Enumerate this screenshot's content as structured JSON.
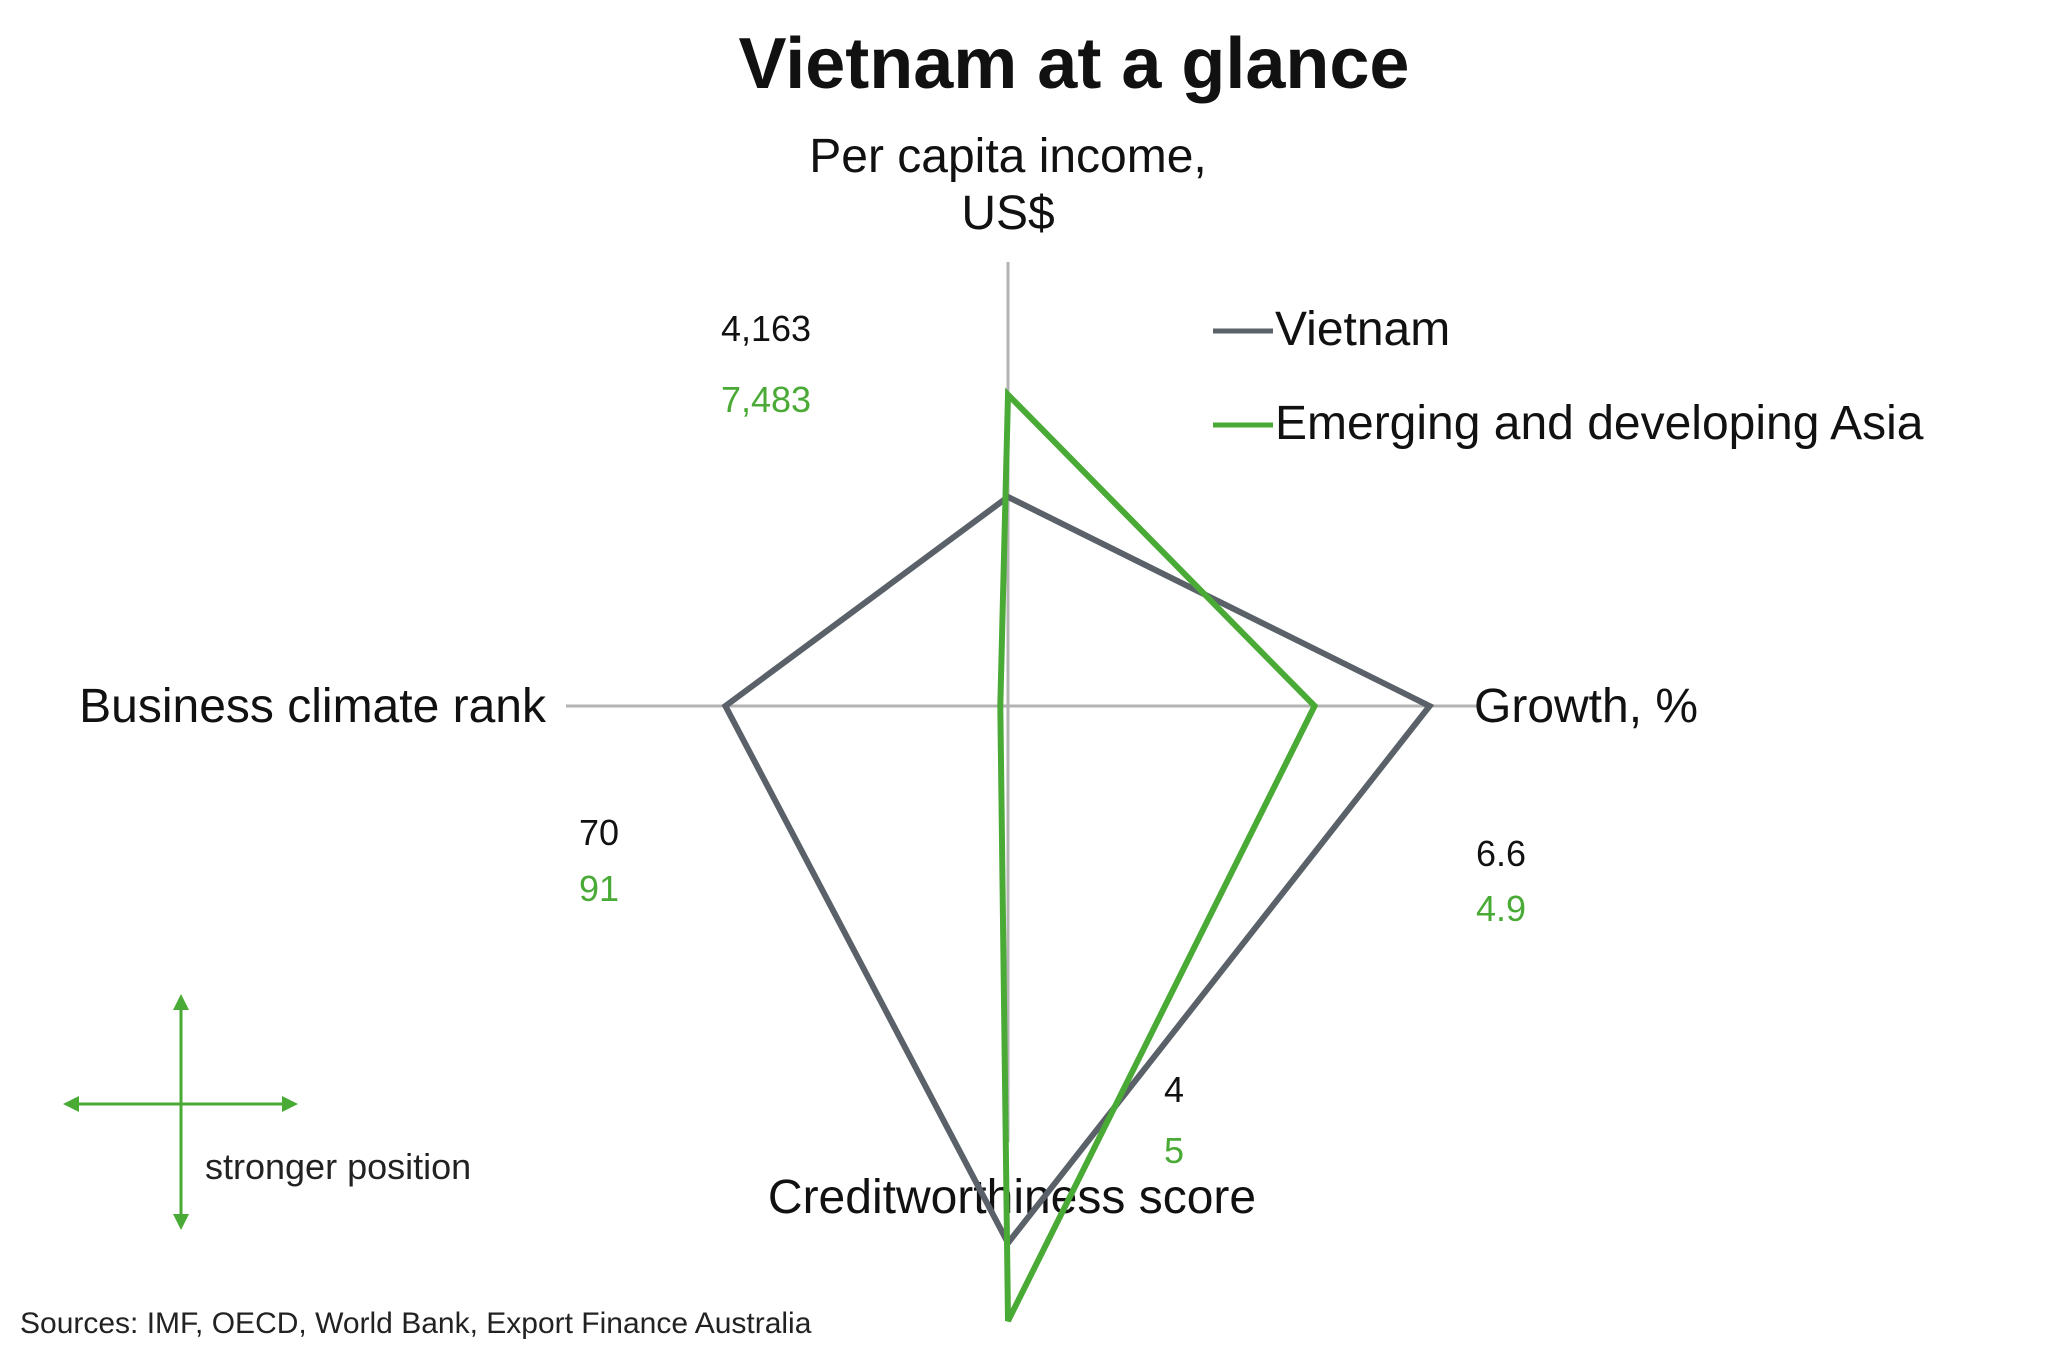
{
  "chart_data": {
    "type": "radar",
    "title": "Vietnam at a glance",
    "axes": [
      {
        "key": "income",
        "label_lines": [
          "Per capita income,",
          "US$"
        ]
      },
      {
        "key": "growth",
        "label_lines": [
          "Growth, %"
        ]
      },
      {
        "key": "credit",
        "label_lines": [
          "Creditworthiness score"
        ]
      },
      {
        "key": "business",
        "label_lines": [
          "Business climate rank"
        ]
      }
    ],
    "series": [
      {
        "name": "Vietnam",
        "color": "#5a6168",
        "values": {
          "income": 4163,
          "growth": 6.6,
          "credit": 4,
          "business": 70
        },
        "labels": {
          "income": "4,163",
          "growth": "6.6",
          "credit": "4",
          "business": "70"
        }
      },
      {
        "name": "Emerging and developing Asia",
        "color": "#4aaa36",
        "values": {
          "income": 7483,
          "growth": 4.9,
          "credit": 5,
          "business": 91
        },
        "labels": {
          "income": "7,483",
          "growth": "4.9",
          "credit": "5",
          "business": "91"
        }
      }
    ],
    "legend_position": "top-right",
    "grid": false,
    "direction_note": "stronger position",
    "source": "Sources: IMF, OECD, World Bank, Export Finance Australia"
  }
}
